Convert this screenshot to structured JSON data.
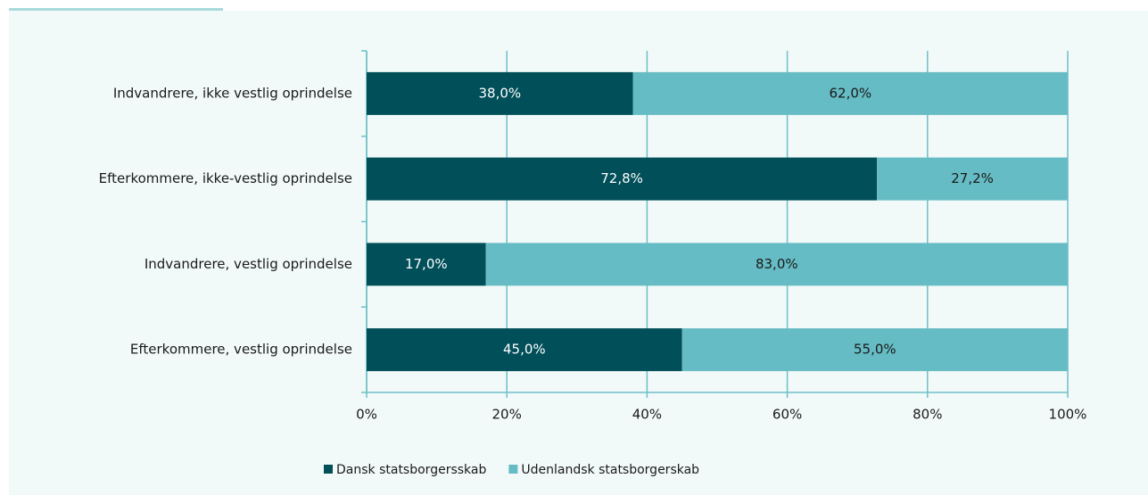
{
  "chart_data": {
    "type": "stacked-bar-horizontal",
    "categories": [
      "Indvandrere, ikke vestlig oprindelse",
      "Efterkommere, ikke-vestlig oprindelse",
      "Indvandrere, vestlig oprindelse",
      "Efterkommere, vestlig oprindelse"
    ],
    "series": [
      {
        "name": "Dansk statsborgersskab",
        "color": "#004f59",
        "values": [
          38,
          72.8,
          17,
          45
        ],
        "value_labels": [
          "38,0%",
          "72,8%",
          "17,0%",
          "45,0%"
        ]
      },
      {
        "name": "Udenlandsk statsborgerskab",
        "color": "#66bcc4",
        "values": [
          62,
          27.2,
          83,
          55
        ],
        "value_labels": [
          "62,0%",
          "27,2%",
          "83,0%",
          "55,0%"
        ]
      }
    ],
    "xlim": [
      0,
      100
    ],
    "xticks": [
      {
        "value": 0,
        "label": "0%"
      },
      {
        "value": 20,
        "label": "20%"
      },
      {
        "value": 40,
        "label": "40%"
      },
      {
        "value": 60,
        "label": "60%"
      },
      {
        "value": 80,
        "label": "80%"
      },
      {
        "value": 100,
        "label": "100%"
      }
    ],
    "grid": true,
    "legend": "bottom"
  }
}
